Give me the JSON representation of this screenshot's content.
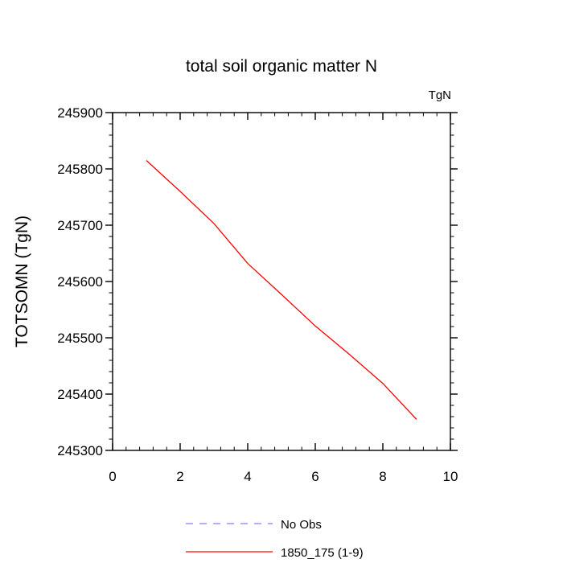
{
  "chart_data": {
    "type": "line",
    "title": "total soil organic matter N",
    "units_label": "TgN",
    "xlabel": "",
    "ylabel": "TOTSOMN  (TgN)",
    "xlim": [
      0,
      10
    ],
    "ylim": [
      245300,
      245900
    ],
    "x_ticks": [
      0,
      2,
      4,
      6,
      8,
      10
    ],
    "y_ticks": [
      245300,
      245400,
      245500,
      245600,
      245700,
      245800,
      245900
    ],
    "x_minor_step": 0.4,
    "y_minor_step": 20,
    "grid": false,
    "legend_position": "bottom",
    "series": [
      {
        "name": "No Obs",
        "style": "dashed",
        "color": "#8080ff",
        "x": [],
        "y": []
      },
      {
        "name": "1850_175 (1-9)",
        "style": "solid",
        "color": "#ff0000",
        "x": [
          1,
          2,
          3,
          4,
          5,
          6,
          7,
          8,
          9
        ],
        "y": [
          245815,
          245760,
          245703,
          245632,
          245577,
          245521,
          245471,
          245419,
          245355
        ]
      }
    ]
  }
}
